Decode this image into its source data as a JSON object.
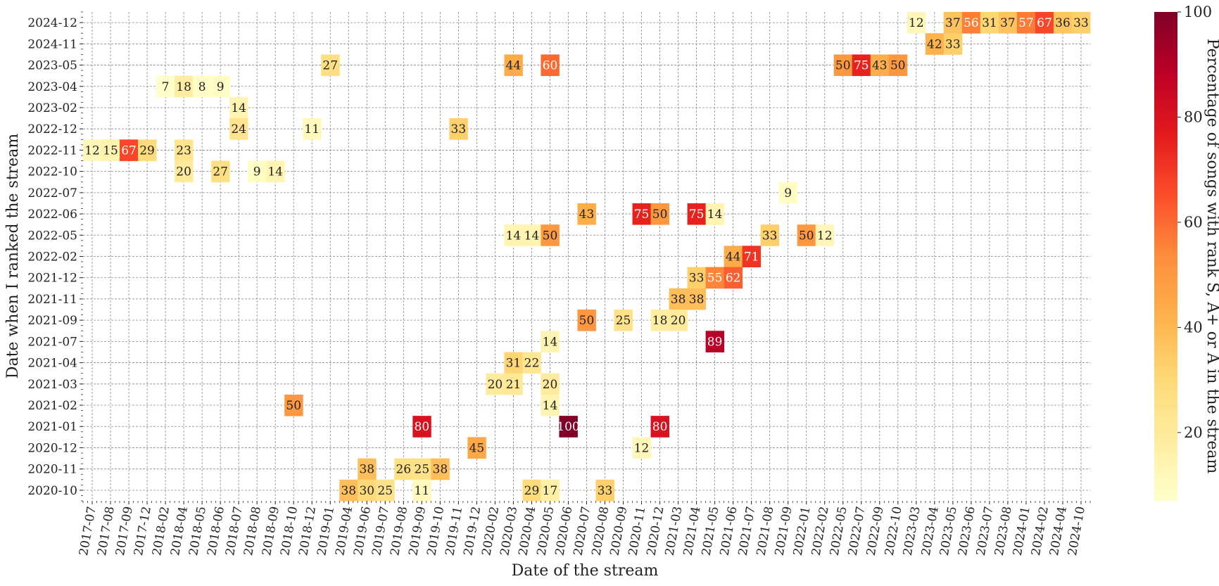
{
  "chart_data": {
    "type": "heatmap",
    "title": "",
    "xlabel": "Date of the stream",
    "ylabel": "Date when I ranked the stream",
    "x_categories": [
      "2017-07",
      "2017-08",
      "2017-09",
      "2017-12",
      "2018-02",
      "2018-04",
      "2018-05",
      "2018-06",
      "2018-07",
      "2018-08",
      "2018-09",
      "2018-10",
      "2018-12",
      "2019-01",
      "2019-04",
      "2019-06",
      "2019-07",
      "2019-08",
      "2019-09",
      "2019-10",
      "2019-11",
      "2019-12",
      "2020-02",
      "2020-03",
      "2020-04",
      "2020-05",
      "2020-06",
      "2020-07",
      "2020-08",
      "2020-09",
      "2020-11",
      "2020-12",
      "2021-03",
      "2021-04",
      "2021-05",
      "2021-06",
      "2021-07",
      "2021-08",
      "2021-09",
      "2022-01",
      "2022-02",
      "2022-05",
      "2022-07",
      "2022-09",
      "2022-10",
      "2023-03",
      "2023-04",
      "2023-05",
      "2023-06",
      "2023-07",
      "2023-08",
      "2024-01",
      "2024-02",
      "2024-04",
      "2024-10"
    ],
    "y_categories": [
      "2024-12",
      "2024-11",
      "2023-05",
      "2023-04",
      "2023-02",
      "2022-12",
      "2022-11",
      "2022-10",
      "2022-07",
      "2022-06",
      "2022-05",
      "2022-02",
      "2021-12",
      "2021-11",
      "2021-09",
      "2021-07",
      "2021-04",
      "2021-03",
      "2021-02",
      "2021-01",
      "2020-12",
      "2020-11",
      "2020-10"
    ],
    "cells": [
      {
        "x": "2023-03",
        "y": "2024-12",
        "value": 12
      },
      {
        "x": "2023-05",
        "y": "2024-12",
        "value": 37
      },
      {
        "x": "2023-06",
        "y": "2024-12",
        "value": 56
      },
      {
        "x": "2023-07",
        "y": "2024-12",
        "value": 31
      },
      {
        "x": "2023-08",
        "y": "2024-12",
        "value": 37
      },
      {
        "x": "2024-01",
        "y": "2024-12",
        "value": 57
      },
      {
        "x": "2024-02",
        "y": "2024-12",
        "value": 67
      },
      {
        "x": "2024-04",
        "y": "2024-12",
        "value": 36
      },
      {
        "x": "2024-10",
        "y": "2024-12",
        "value": 33
      },
      {
        "x": "2023-04",
        "y": "2024-11",
        "value": 42
      },
      {
        "x": "2023-05",
        "y": "2024-11",
        "value": 33
      },
      {
        "x": "2019-01",
        "y": "2023-05",
        "value": 27
      },
      {
        "x": "2020-03",
        "y": "2023-05",
        "value": 44
      },
      {
        "x": "2020-05",
        "y": "2023-05",
        "value": 60
      },
      {
        "x": "2022-05",
        "y": "2023-05",
        "value": 50
      },
      {
        "x": "2022-07",
        "y": "2023-05",
        "value": 75
      },
      {
        "x": "2022-09",
        "y": "2023-05",
        "value": 43
      },
      {
        "x": "2022-10",
        "y": "2023-05",
        "value": 50
      },
      {
        "x": "2018-02",
        "y": "2023-04",
        "value": 7
      },
      {
        "x": "2018-04",
        "y": "2023-04",
        "value": 18
      },
      {
        "x": "2018-05",
        "y": "2023-04",
        "value": 8
      },
      {
        "x": "2018-06",
        "y": "2023-04",
        "value": 9
      },
      {
        "x": "2018-07",
        "y": "2023-02",
        "value": 14
      },
      {
        "x": "2018-07",
        "y": "2022-12",
        "value": 24
      },
      {
        "x": "2018-12",
        "y": "2022-12",
        "value": 11
      },
      {
        "x": "2019-11",
        "y": "2022-12",
        "value": 33
      },
      {
        "x": "2017-07",
        "y": "2022-11",
        "value": 12
      },
      {
        "x": "2017-08",
        "y": "2022-11",
        "value": 15
      },
      {
        "x": "2017-09",
        "y": "2022-11",
        "value": 67
      },
      {
        "x": "2017-12",
        "y": "2022-11",
        "value": 29
      },
      {
        "x": "2018-04",
        "y": "2022-11",
        "value": 23
      },
      {
        "x": "2018-04",
        "y": "2022-10",
        "value": 20
      },
      {
        "x": "2018-06",
        "y": "2022-10",
        "value": 27
      },
      {
        "x": "2018-08",
        "y": "2022-10",
        "value": 9
      },
      {
        "x": "2018-09",
        "y": "2022-10",
        "value": 14
      },
      {
        "x": "2021-09",
        "y": "2022-07",
        "value": 9
      },
      {
        "x": "2020-07",
        "y": "2022-06",
        "value": 43
      },
      {
        "x": "2020-11",
        "y": "2022-06",
        "value": 75
      },
      {
        "x": "2020-12",
        "y": "2022-06",
        "value": 50
      },
      {
        "x": "2021-04",
        "y": "2022-06",
        "value": 75
      },
      {
        "x": "2021-05",
        "y": "2022-06",
        "value": 14
      },
      {
        "x": "2020-03",
        "y": "2022-05",
        "value": 14
      },
      {
        "x": "2020-04",
        "y": "2022-05",
        "value": 14
      },
      {
        "x": "2020-05",
        "y": "2022-05",
        "value": 50
      },
      {
        "x": "2021-08",
        "y": "2022-05",
        "value": 33
      },
      {
        "x": "2022-01",
        "y": "2022-05",
        "value": 50
      },
      {
        "x": "2022-02",
        "y": "2022-05",
        "value": 12
      },
      {
        "x": "2021-06",
        "y": "2022-02",
        "value": 44
      },
      {
        "x": "2021-07",
        "y": "2022-02",
        "value": 71
      },
      {
        "x": "2021-04",
        "y": "2021-12",
        "value": 33
      },
      {
        "x": "2021-05",
        "y": "2021-12",
        "value": 55
      },
      {
        "x": "2021-06",
        "y": "2021-12",
        "value": 62
      },
      {
        "x": "2021-03",
        "y": "2021-11",
        "value": 38
      },
      {
        "x": "2021-04",
        "y": "2021-11",
        "value": 38
      },
      {
        "x": "2020-07",
        "y": "2021-09",
        "value": 50
      },
      {
        "x": "2020-09",
        "y": "2021-09",
        "value": 25
      },
      {
        "x": "2020-12",
        "y": "2021-09",
        "value": 18
      },
      {
        "x": "2021-03",
        "y": "2021-09",
        "value": 20
      },
      {
        "x": "2020-05",
        "y": "2021-07",
        "value": 14
      },
      {
        "x": "2021-05",
        "y": "2021-07",
        "value": 89
      },
      {
        "x": "2020-03",
        "y": "2021-04",
        "value": 31
      },
      {
        "x": "2020-04",
        "y": "2021-04",
        "value": 22
      },
      {
        "x": "2020-02",
        "y": "2021-03",
        "value": 20
      },
      {
        "x": "2020-03",
        "y": "2021-03",
        "value": 21
      },
      {
        "x": "2020-05",
        "y": "2021-03",
        "value": 20
      },
      {
        "x": "2018-10",
        "y": "2021-02",
        "value": 50
      },
      {
        "x": "2020-05",
        "y": "2021-02",
        "value": 14
      },
      {
        "x": "2019-09",
        "y": "2021-01",
        "value": 80
      },
      {
        "x": "2020-06",
        "y": "2021-01",
        "value": 100
      },
      {
        "x": "2020-12",
        "y": "2021-01",
        "value": 80
      },
      {
        "x": "2019-12",
        "y": "2020-12",
        "value": 45
      },
      {
        "x": "2020-11",
        "y": "2020-12",
        "value": 12
      },
      {
        "x": "2019-06",
        "y": "2020-11",
        "value": 38
      },
      {
        "x": "2019-08",
        "y": "2020-11",
        "value": 26
      },
      {
        "x": "2019-09",
        "y": "2020-11",
        "value": 25
      },
      {
        "x": "2019-10",
        "y": "2020-11",
        "value": 38
      },
      {
        "x": "2019-04",
        "y": "2020-10",
        "value": 38
      },
      {
        "x": "2019-06",
        "y": "2020-10",
        "value": 30
      },
      {
        "x": "2019-07",
        "y": "2020-10",
        "value": 25
      },
      {
        "x": "2019-09",
        "y": "2020-10",
        "value": 11
      },
      {
        "x": "2020-04",
        "y": "2020-10",
        "value": 29
      },
      {
        "x": "2020-05",
        "y": "2020-10",
        "value": 17
      },
      {
        "x": "2020-08",
        "y": "2020-10",
        "value": 33
      }
    ],
    "colorbar": {
      "label": "Percentage of songs with rank S, A+ or A in the stream",
      "range": [
        7,
        100
      ],
      "ticks": [
        20,
        40,
        60,
        80,
        100
      ],
      "colormap": "YlOrRd"
    },
    "grid": true
  }
}
